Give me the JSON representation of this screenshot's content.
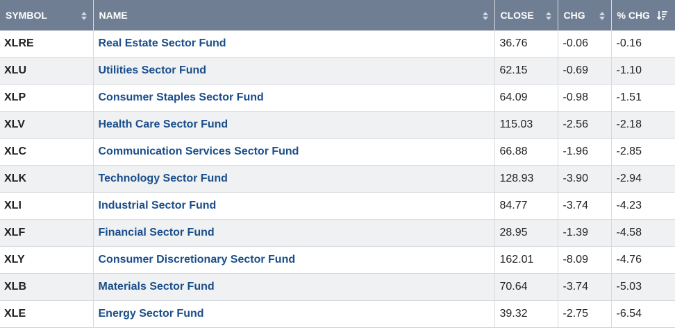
{
  "table": {
    "headers": {
      "symbol": "SYMBOL",
      "name": "NAME",
      "close": "CLOSE",
      "chg": "CHG",
      "pct_chg": "% CHG"
    },
    "sorted_column": "pct_chg",
    "sort_direction": "descending",
    "colors": {
      "header_bg": "#707e93",
      "link": "#1a4e8a",
      "stripe": "#f0f1f3"
    },
    "rows": [
      {
        "symbol": "XLRE",
        "name": "Real Estate Sector Fund",
        "close": "36.76",
        "chg": "-0.06",
        "pct_chg": "-0.16"
      },
      {
        "symbol": "XLU",
        "name": "Utilities Sector Fund",
        "close": "62.15",
        "chg": "-0.69",
        "pct_chg": "-1.10"
      },
      {
        "symbol": "XLP",
        "name": "Consumer Staples Sector Fund",
        "close": "64.09",
        "chg": "-0.98",
        "pct_chg": "-1.51"
      },
      {
        "symbol": "XLV",
        "name": "Health Care Sector Fund",
        "close": "115.03",
        "chg": "-2.56",
        "pct_chg": "-2.18"
      },
      {
        "symbol": "XLC",
        "name": "Communication Services Sector Fund",
        "close": "66.88",
        "chg": "-1.96",
        "pct_chg": "-2.85"
      },
      {
        "symbol": "XLK",
        "name": "Technology Sector Fund",
        "close": "128.93",
        "chg": "-3.90",
        "pct_chg": "-2.94"
      },
      {
        "symbol": "XLI",
        "name": "Industrial Sector Fund",
        "close": "84.77",
        "chg": "-3.74",
        "pct_chg": "-4.23"
      },
      {
        "symbol": "XLF",
        "name": "Financial Sector Fund",
        "close": "28.95",
        "chg": "-1.39",
        "pct_chg": "-4.58"
      },
      {
        "symbol": "XLY",
        "name": "Consumer Discretionary Sector Fund",
        "close": "162.01",
        "chg": "-8.09",
        "pct_chg": "-4.76"
      },
      {
        "symbol": "XLB",
        "name": "Materials Sector Fund",
        "close": "70.64",
        "chg": "-3.74",
        "pct_chg": "-5.03"
      },
      {
        "symbol": "XLE",
        "name": "Energy Sector Fund",
        "close": "39.32",
        "chg": "-2.75",
        "pct_chg": "-6.54"
      }
    ]
  }
}
